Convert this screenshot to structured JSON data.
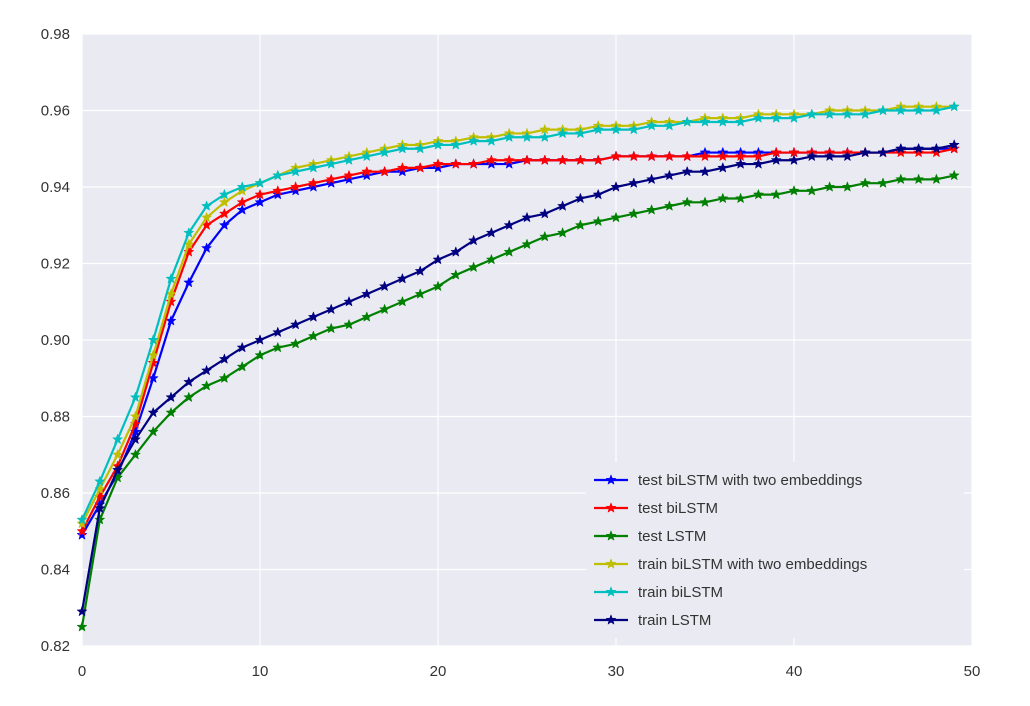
{
  "chart_data": {
    "type": "line",
    "title": "",
    "xlabel": "",
    "ylabel": "",
    "xlim": [
      0,
      50
    ],
    "ylim": [
      0.82,
      0.98
    ],
    "xticks": [
      0,
      10,
      20,
      30,
      40,
      50
    ],
    "xtick_labels": [
      "0",
      "10",
      "20",
      "30",
      "40",
      "50"
    ],
    "yticks": [
      0.82,
      0.84,
      0.86,
      0.88,
      0.9,
      0.92,
      0.94,
      0.96,
      0.98
    ],
    "ytick_labels": [
      "0.82",
      "0.84",
      "0.86",
      "0.88",
      "0.90",
      "0.92",
      "0.94",
      "0.96",
      "0.98"
    ],
    "grid": true,
    "background": "#eaeaf2",
    "marker": "star",
    "legend_position": "lower right",
    "x": [
      0,
      1,
      2,
      3,
      4,
      5,
      6,
      7,
      8,
      9,
      10,
      11,
      12,
      13,
      14,
      15,
      16,
      17,
      18,
      19,
      20,
      21,
      22,
      23,
      24,
      25,
      26,
      27,
      28,
      29,
      30,
      31,
      32,
      33,
      34,
      35,
      36,
      37,
      38,
      39,
      40,
      41,
      42,
      43,
      44,
      45,
      46,
      47,
      48,
      49
    ],
    "series": [
      {
        "name": "test biLSTM with two embeddings",
        "color": "#0000ff",
        "values": [
          0.849,
          0.857,
          0.865,
          0.876,
          0.89,
          0.905,
          0.915,
          0.924,
          0.93,
          0.934,
          0.936,
          0.938,
          0.939,
          0.94,
          0.941,
          0.942,
          0.943,
          0.944,
          0.944,
          0.945,
          0.945,
          0.946,
          0.946,
          0.946,
          0.946,
          0.947,
          0.947,
          0.947,
          0.947,
          0.947,
          0.948,
          0.948,
          0.948,
          0.948,
          0.948,
          0.949,
          0.949,
          0.949,
          0.949,
          0.949,
          0.949,
          0.949,
          0.949,
          0.949,
          0.949,
          0.949,
          0.95,
          0.95,
          0.95,
          0.95
        ]
      },
      {
        "name": "test biLSTM",
        "color": "#ff0000",
        "values": [
          0.85,
          0.859,
          0.867,
          0.878,
          0.894,
          0.91,
          0.923,
          0.93,
          0.933,
          0.936,
          0.938,
          0.939,
          0.94,
          0.941,
          0.942,
          0.943,
          0.944,
          0.944,
          0.945,
          0.945,
          0.946,
          0.946,
          0.946,
          0.947,
          0.947,
          0.947,
          0.947,
          0.947,
          0.947,
          0.947,
          0.948,
          0.948,
          0.948,
          0.948,
          0.948,
          0.948,
          0.948,
          0.948,
          0.948,
          0.949,
          0.949,
          0.949,
          0.949,
          0.949,
          0.949,
          0.949,
          0.949,
          0.949,
          0.949,
          0.95
        ]
      },
      {
        "name": "test LSTM",
        "color": "#008000",
        "values": [
          0.825,
          0.853,
          0.864,
          0.87,
          0.876,
          0.881,
          0.885,
          0.888,
          0.89,
          0.893,
          0.896,
          0.898,
          0.899,
          0.901,
          0.903,
          0.904,
          0.906,
          0.908,
          0.91,
          0.912,
          0.914,
          0.917,
          0.919,
          0.921,
          0.923,
          0.925,
          0.927,
          0.928,
          0.93,
          0.931,
          0.932,
          0.933,
          0.934,
          0.935,
          0.936,
          0.936,
          0.937,
          0.937,
          0.938,
          0.938,
          0.939,
          0.939,
          0.94,
          0.94,
          0.941,
          0.941,
          0.942,
          0.942,
          0.942,
          0.943
        ]
      },
      {
        "name": "train biLSTM with two embeddings",
        "color": "#bfbf00",
        "values": [
          0.852,
          0.861,
          0.87,
          0.88,
          0.896,
          0.912,
          0.925,
          0.932,
          0.936,
          0.939,
          0.941,
          0.943,
          0.945,
          0.946,
          0.947,
          0.948,
          0.949,
          0.95,
          0.951,
          0.951,
          0.952,
          0.952,
          0.953,
          0.953,
          0.954,
          0.954,
          0.955,
          0.955,
          0.955,
          0.956,
          0.956,
          0.956,
          0.957,
          0.957,
          0.957,
          0.958,
          0.958,
          0.958,
          0.959,
          0.959,
          0.959,
          0.959,
          0.96,
          0.96,
          0.96,
          0.96,
          0.961,
          0.961,
          0.961,
          0.961
        ]
      },
      {
        "name": "train biLSTM",
        "color": "#00bfbf",
        "values": [
          0.853,
          0.863,
          0.874,
          0.885,
          0.9,
          0.916,
          0.928,
          0.935,
          0.938,
          0.94,
          0.941,
          0.943,
          0.944,
          0.945,
          0.946,
          0.947,
          0.948,
          0.949,
          0.95,
          0.95,
          0.951,
          0.951,
          0.952,
          0.952,
          0.953,
          0.953,
          0.953,
          0.954,
          0.954,
          0.955,
          0.955,
          0.955,
          0.956,
          0.956,
          0.957,
          0.957,
          0.957,
          0.957,
          0.958,
          0.958,
          0.958,
          0.959,
          0.959,
          0.959,
          0.959,
          0.96,
          0.96,
          0.96,
          0.96,
          0.961
        ]
      },
      {
        "name": "train LSTM",
        "color": "#000080",
        "values": [
          0.829,
          0.856,
          0.866,
          0.874,
          0.881,
          0.885,
          0.889,
          0.892,
          0.895,
          0.898,
          0.9,
          0.902,
          0.904,
          0.906,
          0.908,
          0.91,
          0.912,
          0.914,
          0.916,
          0.918,
          0.921,
          0.923,
          0.926,
          0.928,
          0.93,
          0.932,
          0.933,
          0.935,
          0.937,
          0.938,
          0.94,
          0.941,
          0.942,
          0.943,
          0.944,
          0.944,
          0.945,
          0.946,
          0.946,
          0.947,
          0.947,
          0.948,
          0.948,
          0.948,
          0.949,
          0.949,
          0.95,
          0.95,
          0.95,
          0.951
        ]
      }
    ]
  }
}
